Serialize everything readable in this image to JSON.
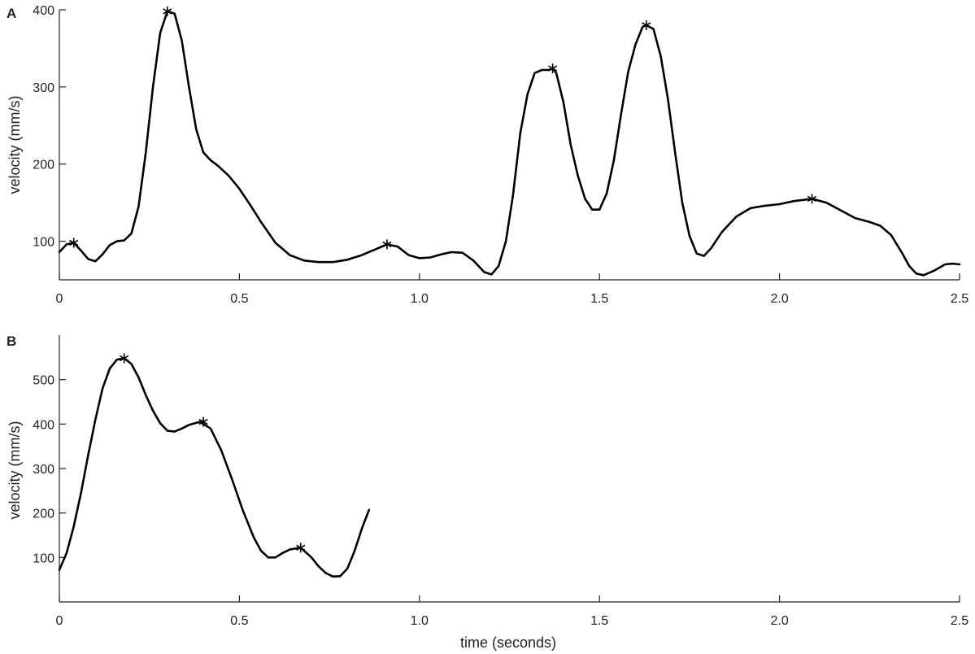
{
  "figure": {
    "xlabel": "time (seconds)"
  },
  "chart_data": [
    {
      "type": "line",
      "panel_label": "A",
      "title": "",
      "xlabel": "",
      "ylabel": "velocity (mm/s)",
      "xlim": [
        0,
        2.5
      ],
      "ylim": [
        50,
        400
      ],
      "xticks": [
        "0",
        "0.5",
        "1.0",
        "1.5",
        "2.0",
        "2.5"
      ],
      "xtick_values": [
        0,
        0.5,
        1.0,
        1.5,
        2.0,
        2.5
      ],
      "yticks": [
        "100",
        "200",
        "300",
        "400"
      ],
      "ytick_values": [
        100,
        200,
        300,
        400
      ],
      "grid": false,
      "series": [
        {
          "x": [
            0.0,
            0.02,
            0.04,
            0.06,
            0.08,
            0.1,
            0.12,
            0.14,
            0.16,
            0.18,
            0.2,
            0.22,
            0.24,
            0.26,
            0.28,
            0.3,
            0.32,
            0.34,
            0.36,
            0.38,
            0.4,
            0.42,
            0.44,
            0.47,
            0.5,
            0.53,
            0.56,
            0.6,
            0.64,
            0.68,
            0.72,
            0.76,
            0.8,
            0.84,
            0.88,
            0.91,
            0.94,
            0.97,
            1.0,
            1.03,
            1.06,
            1.09,
            1.12,
            1.15,
            1.18,
            1.2,
            1.22,
            1.24,
            1.26,
            1.28,
            1.3,
            1.32,
            1.34,
            1.36,
            1.37,
            1.38,
            1.4,
            1.42,
            1.44,
            1.46,
            1.48,
            1.5,
            1.52,
            1.54,
            1.56,
            1.58,
            1.6,
            1.62,
            1.63,
            1.65,
            1.67,
            1.69,
            1.71,
            1.73,
            1.75,
            1.77,
            1.79,
            1.81,
            1.84,
            1.88,
            1.92,
            1.96,
            2.0,
            2.04,
            2.09,
            2.13,
            2.17,
            2.21,
            2.25,
            2.28,
            2.31,
            2.34,
            2.36,
            2.38,
            2.4,
            2.43,
            2.46,
            2.48,
            2.5
          ],
          "values": [
            86,
            96,
            98,
            88,
            77,
            74,
            83,
            95,
            100,
            101,
            110,
            145,
            215,
            300,
            370,
            398,
            395,
            360,
            300,
            245,
            215,
            205,
            198,
            185,
            168,
            147,
            125,
            98,
            82,
            75,
            73,
            73,
            76,
            82,
            90,
            96,
            93,
            82,
            78,
            79,
            83,
            86,
            85,
            75,
            60,
            57,
            68,
            100,
            160,
            240,
            290,
            318,
            322,
            322,
            324,
            318,
            280,
            225,
            185,
            155,
            141,
            141,
            162,
            205,
            265,
            320,
            355,
            378,
            380,
            375,
            340,
            285,
            215,
            150,
            107,
            84,
            81,
            91,
            112,
            132,
            143,
            146,
            148,
            152,
            155,
            150,
            140,
            130,
            125,
            120,
            108,
            85,
            68,
            58,
            56,
            62,
            70,
            71,
            70
          ]
        }
      ],
      "peaks": {
        "x": [
          0.04,
          0.3,
          0.91,
          1.37,
          1.63,
          2.09
        ],
        "values": [
          98,
          398,
          96,
          324,
          380,
          155
        ]
      }
    },
    {
      "type": "line",
      "panel_label": "B",
      "title": "",
      "xlabel": "time (seconds)",
      "ylabel": "velocity (mm/s)",
      "xlim": [
        0,
        2.5
      ],
      "ylim": [
        0,
        600
      ],
      "xticks": [
        "0",
        "0.5",
        "1.0",
        "1.5",
        "2.0",
        "2.5"
      ],
      "xtick_values": [
        0,
        0.5,
        1.0,
        1.5,
        2.0,
        2.5
      ],
      "yticks": [
        "100",
        "200",
        "300",
        "400",
        "500"
      ],
      "ytick_values": [
        100,
        200,
        300,
        400,
        500
      ],
      "grid": false,
      "series": [
        {
          "x": [
            0.0,
            0.02,
            0.04,
            0.06,
            0.08,
            0.1,
            0.12,
            0.14,
            0.16,
            0.18,
            0.2,
            0.22,
            0.24,
            0.26,
            0.28,
            0.3,
            0.32,
            0.34,
            0.36,
            0.39,
            0.42,
            0.45,
            0.48,
            0.51,
            0.54,
            0.56,
            0.58,
            0.6,
            0.62,
            0.64,
            0.67,
            0.7,
            0.72,
            0.74,
            0.76,
            0.78,
            0.8,
            0.82,
            0.84,
            0.86
          ],
          "values": [
            72,
            110,
            170,
            245,
            330,
            410,
            480,
            525,
            545,
            548,
            535,
            505,
            465,
            430,
            402,
            385,
            383,
            390,
            398,
            405,
            390,
            340,
            275,
            205,
            145,
            115,
            100,
            100,
            110,
            118,
            122,
            100,
            80,
            65,
            57,
            58,
            75,
            115,
            165,
            207
          ]
        }
      ],
      "peaks": {
        "x": [
          0.18,
          0.4,
          0.67
        ],
        "values": [
          548,
          405,
          122
        ]
      }
    }
  ]
}
